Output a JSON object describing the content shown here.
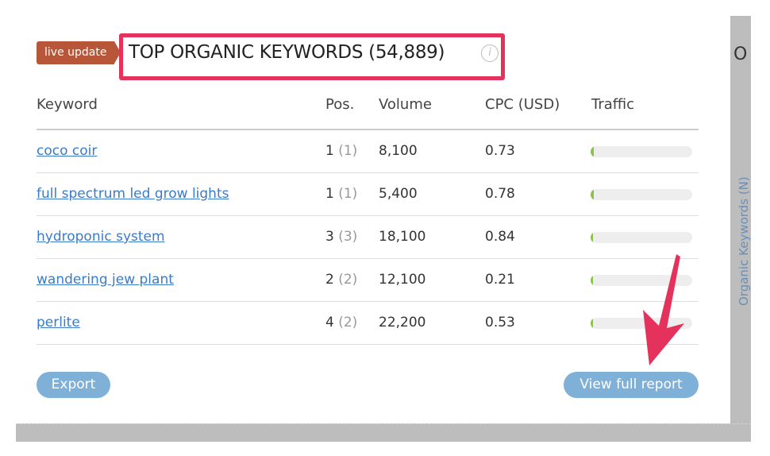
{
  "badge": "live update",
  "title": "TOP ORGANIC KEYWORDS (54,889)",
  "info_icon": "i",
  "columns": {
    "keyword": "Keyword",
    "pos": "Pos.",
    "volume": "Volume",
    "cpc": "CPC (USD)",
    "traffic": "Traffic"
  },
  "rows": [
    {
      "keyword": "coco coir",
      "pos": "1",
      "prev": "(1)",
      "volume": "8,100",
      "cpc": "0.73",
      "traffic_pct": 3
    },
    {
      "keyword": "full spectrum led grow lights",
      "pos": "1",
      "prev": "(1)",
      "volume": "5,400",
      "cpc": "0.78",
      "traffic_pct": 3
    },
    {
      "keyword": "hydroponic system",
      "pos": "3",
      "prev": "(3)",
      "volume": "18,100",
      "cpc": "0.84",
      "traffic_pct": 2
    },
    {
      "keyword": "wandering jew plant",
      "pos": "2",
      "prev": "(2)",
      "volume": "12,100",
      "cpc": "0.21",
      "traffic_pct": 2
    },
    {
      "keyword": "perlite",
      "pos": "4",
      "prev": "(2)",
      "volume": "22,200",
      "cpc": "0.53",
      "traffic_pct": 2
    }
  ],
  "buttons": {
    "export": "Export",
    "full_report": "View full report"
  },
  "side": {
    "title": "O",
    "vertical_label": "Organic Keywords (N)"
  },
  "colors": {
    "highlight": "#e5325c",
    "badge": "#b8563a",
    "link": "#3a7bc8",
    "button": "#7fb0d8",
    "traffic": "#8bc34a"
  }
}
